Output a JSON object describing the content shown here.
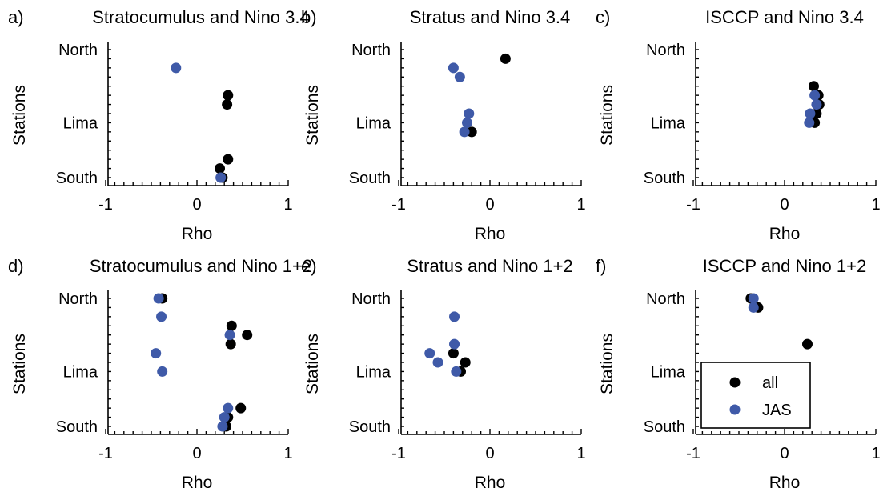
{
  "colors": {
    "all": "#000000",
    "JAS": "#3f5aa8"
  },
  "legend": {
    "entries": [
      {
        "label": "all",
        "color": "#000000"
      },
      {
        "label": "JAS",
        "color": "#3f5aa8"
      }
    ]
  },
  "chart_data": [
    {
      "panel": "a)",
      "type": "scatter",
      "title": "Stratocumulus and Nino 3.4",
      "xlabel": "Rho",
      "ylabel": "Stations",
      "xlim": [
        -1,
        1
      ],
      "xticks": [
        "-1",
        "0",
        "1"
      ],
      "yticklabels": [
        "North",
        "Lima",
        "South"
      ],
      "grid": false,
      "legend": "none",
      "series": [
        {
          "name": "all",
          "points": [
            {
              "x": 0.34,
              "station": 5
            },
            {
              "x": 0.33,
              "station": 6
            },
            {
              "x": 0.34,
              "station": 12
            },
            {
              "x": 0.25,
              "station": 13
            },
            {
              "x": 0.28,
              "station": 14
            }
          ]
        },
        {
          "name": "JAS",
          "points": [
            {
              "x": -0.23,
              "station": 2
            },
            {
              "x": 0.26,
              "station": 14
            }
          ]
        }
      ]
    },
    {
      "panel": "b)",
      "type": "scatter",
      "title": "Stratus and Nino 3.4",
      "xlabel": "Rho",
      "ylabel": "Stations",
      "xlim": [
        -1,
        1
      ],
      "xticks": [
        "-1",
        "0",
        "1"
      ],
      "yticklabels": [
        "North",
        "Lima",
        "South"
      ],
      "grid": false,
      "legend": "none",
      "series": [
        {
          "name": "all",
          "points": [
            {
              "x": 0.17,
              "station": 1
            },
            {
              "x": -0.2,
              "station": 9
            }
          ]
        },
        {
          "name": "JAS",
          "points": [
            {
              "x": -0.4,
              "station": 2
            },
            {
              "x": -0.33,
              "station": 3
            },
            {
              "x": -0.23,
              "station": 7
            },
            {
              "x": -0.25,
              "station": 8
            },
            {
              "x": -0.28,
              "station": 9
            }
          ]
        }
      ]
    },
    {
      "panel": "c)",
      "type": "scatter",
      "title": "ISCCP and Nino 3.4",
      "xlabel": "Rho",
      "ylabel": "Stations",
      "xlim": [
        -1,
        1
      ],
      "xticks": [
        "-1",
        "0",
        "1"
      ],
      "yticklabels": [
        "North",
        "Lima",
        "South"
      ],
      "grid": false,
      "legend": "none",
      "series": [
        {
          "name": "all",
          "points": [
            {
              "x": 0.32,
              "station": 4
            },
            {
              "x": 0.37,
              "station": 5
            },
            {
              "x": 0.38,
              "station": 6
            },
            {
              "x": 0.35,
              "station": 7
            },
            {
              "x": 0.33,
              "station": 8
            }
          ]
        },
        {
          "name": "JAS",
          "points": [
            {
              "x": 0.33,
              "station": 5
            },
            {
              "x": 0.35,
              "station": 6
            },
            {
              "x": 0.28,
              "station": 7
            },
            {
              "x": 0.27,
              "station": 8
            }
          ]
        }
      ]
    },
    {
      "panel": "d)",
      "type": "scatter",
      "title": "Stratocumulus and Nino 1+2",
      "xlabel": "Rho",
      "ylabel": "Stations",
      "xlim": [
        -1,
        1
      ],
      "xticks": [
        "-1",
        "0",
        "1"
      ],
      "yticklabels": [
        "North",
        "Lima",
        "South"
      ],
      "grid": false,
      "legend": "none",
      "series": [
        {
          "name": "all",
          "points": [
            {
              "x": -0.38,
              "station": 0
            },
            {
              "x": 0.38,
              "station": 3
            },
            {
              "x": 0.55,
              "station": 4
            },
            {
              "x": 0.37,
              "station": 5
            },
            {
              "x": 0.48,
              "station": 12
            },
            {
              "x": 0.34,
              "station": 13
            },
            {
              "x": 0.32,
              "station": 14
            }
          ]
        },
        {
          "name": "JAS",
          "points": [
            {
              "x": -0.42,
              "station": 0
            },
            {
              "x": -0.39,
              "station": 2
            },
            {
              "x": 0.36,
              "station": 4
            },
            {
              "x": -0.45,
              "station": 6
            },
            {
              "x": -0.38,
              "station": 8
            },
            {
              "x": 0.34,
              "station": 12
            },
            {
              "x": 0.3,
              "station": 13
            },
            {
              "x": 0.28,
              "station": 14
            }
          ]
        }
      ]
    },
    {
      "panel": "e)",
      "type": "scatter",
      "title": "Stratus and Nino 1+2",
      "xlabel": "Rho",
      "ylabel": "Stations",
      "xlim": [
        -1,
        1
      ],
      "xticks": [
        "-1",
        "0",
        "1"
      ],
      "yticklabels": [
        "North",
        "Lima",
        "South"
      ],
      "grid": false,
      "legend": "none",
      "series": [
        {
          "name": "all",
          "points": [
            {
              "x": -0.4,
              "station": 6
            },
            {
              "x": -0.27,
              "station": 7
            },
            {
              "x": -0.32,
              "station": 8
            }
          ]
        },
        {
          "name": "JAS",
          "points": [
            {
              "x": -0.39,
              "station": 2
            },
            {
              "x": -0.39,
              "station": 5
            },
            {
              "x": -0.66,
              "station": 6
            },
            {
              "x": -0.57,
              "station": 7
            },
            {
              "x": -0.37,
              "station": 8
            }
          ]
        }
      ]
    },
    {
      "panel": "f)",
      "type": "scatter",
      "title": "ISCCP and Nino 1+2",
      "xlabel": "Rho",
      "ylabel": "Stations",
      "xlim": [
        -1,
        1
      ],
      "xticks": [
        "-1",
        "0",
        "1"
      ],
      "yticklabels": [
        "North",
        "Lima",
        "South"
      ],
      "grid": false,
      "legend": "bottom-center",
      "series": [
        {
          "name": "all",
          "points": [
            {
              "x": -0.37,
              "station": 0
            },
            {
              "x": -0.29,
              "station": 1
            },
            {
              "x": 0.25,
              "station": 5
            }
          ]
        },
        {
          "name": "JAS",
          "points": [
            {
              "x": -0.34,
              "station": 0
            },
            {
              "x": -0.34,
              "station": 1
            }
          ]
        }
      ]
    }
  ]
}
